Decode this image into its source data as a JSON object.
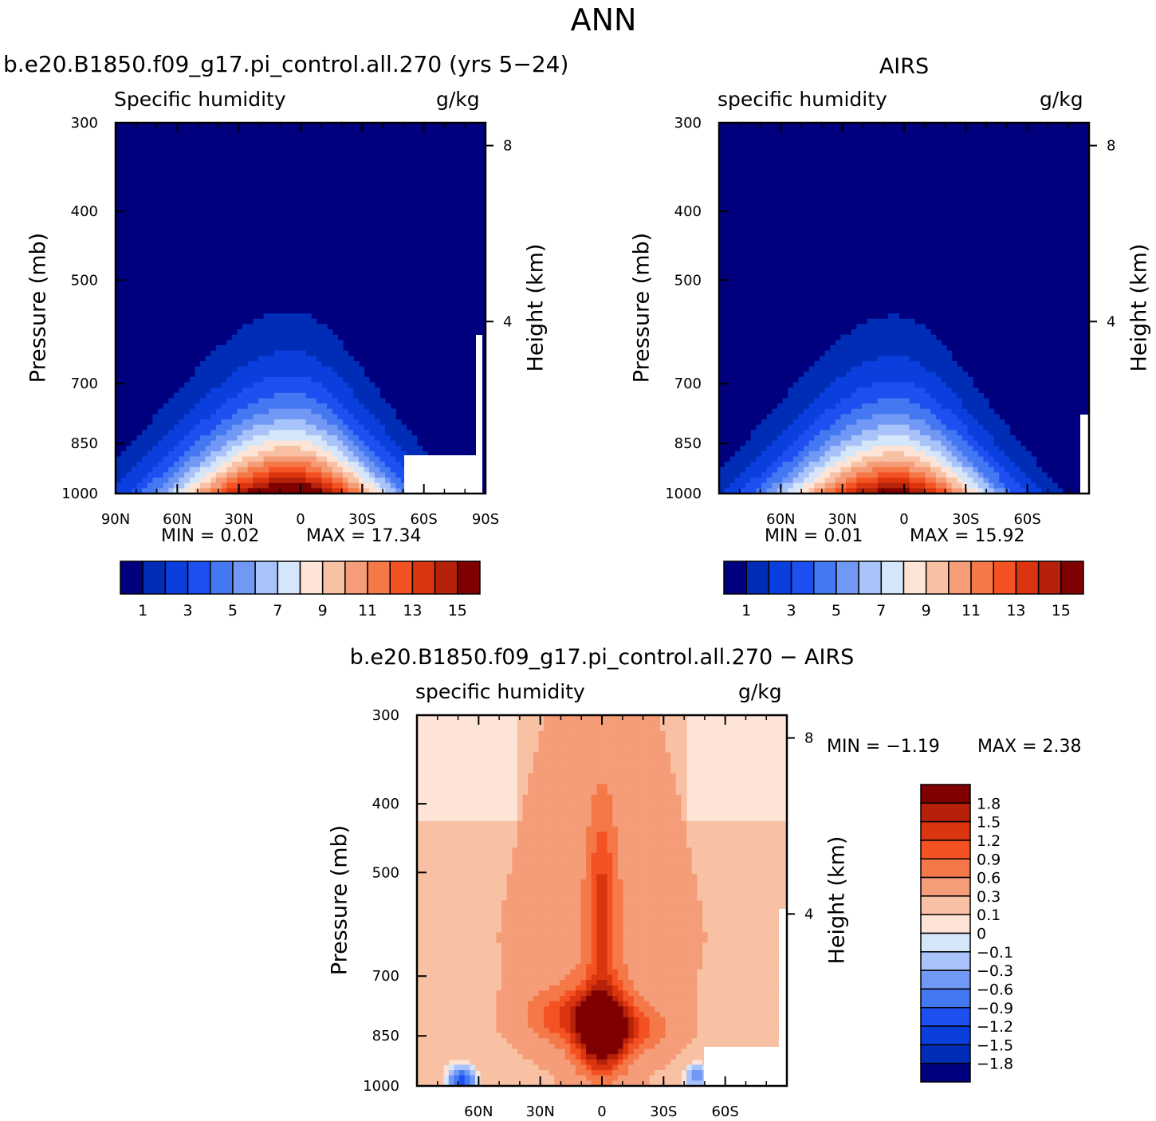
{
  "page_title": "ANN",
  "colors": {
    "positive_scale": [
      "#00007f",
      "#002db5",
      "#0a3fde",
      "#1d4ff1",
      "#4477f2",
      "#7298f5",
      "#a8c2fa",
      "#d5e6fb",
      "#fde4d6",
      "#f9c1a3",
      "#f59c78",
      "#f57848",
      "#f45223",
      "#db3510",
      "#b52209",
      "#7f0000"
    ],
    "diff_positive": [
      "#fde4d6",
      "#f9c1a3",
      "#f59c78",
      "#f57848",
      "#f45223",
      "#db3510",
      "#b52209",
      "#7f0000"
    ],
    "diff_negative": [
      "#d5e6fb",
      "#a8c2fa",
      "#7298f5",
      "#4477f2",
      "#1d4ff1",
      "#0a3fde",
      "#002db5",
      "#00007f"
    ]
  },
  "chart_data": [
    {
      "id": "model",
      "type": "contour",
      "title": "b.e20.B1850.f09_g17.pi_control.all.270 (yrs 5−24)",
      "left_label": "Specific humidity",
      "right_label": "g/kg",
      "xlabel": "",
      "ylabel": "Pressure (mb)",
      "y2label": "Height (km)",
      "x_tick_labels": [
        "90N",
        "60N",
        "30N",
        "0",
        "30S",
        "60S",
        "90S"
      ],
      "y_tick_labels": [
        "300",
        "400",
        "500",
        "700",
        "850",
        "1000"
      ],
      "y_tick_values": [
        300,
        400,
        500,
        700,
        850,
        1000
      ],
      "y2_tick_labels": [
        "8",
        "4"
      ],
      "y2_tick_values": [
        8,
        4
      ],
      "ylim": [
        1000,
        300
      ],
      "xlim": [
        90,
        -90
      ],
      "min_text": "MIN =    0.02",
      "max_text": "MAX =   17.34",
      "min": 0.02,
      "max": 17.34,
      "peak_lat": 5,
      "colorbar_levels": [
        1,
        2,
        3,
        4,
        5,
        6,
        7,
        8,
        9,
        10,
        11,
        12,
        13,
        14,
        15
      ],
      "colorbar_labels": [
        "1",
        "3",
        "5",
        "7",
        "9",
        "11",
        "13",
        "15"
      ]
    },
    {
      "id": "obs",
      "type": "contour",
      "title": "AIRS",
      "left_label": "specific humidity",
      "right_label": "g/kg",
      "xlabel": "",
      "ylabel": "Pressure (mb)",
      "y2label": "Height (km)",
      "x_tick_labels": [
        "60N",
        "30N",
        "0",
        "30S",
        "60S"
      ],
      "y_tick_labels": [
        "300",
        "400",
        "500",
        "700",
        "850",
        "1000"
      ],
      "y_tick_values": [
        300,
        400,
        500,
        700,
        850,
        1000
      ],
      "y2_tick_labels": [
        "8",
        "4"
      ],
      "y2_tick_values": [
        8,
        4
      ],
      "ylim": [
        1000,
        300
      ],
      "xlim": [
        90,
        -90
      ],
      "min_text": "MIN =    0.01",
      "max_text": "MAX =   15.92",
      "min": 0.01,
      "max": 15.92,
      "peak_lat": 5,
      "colorbar_levels": [
        1,
        2,
        3,
        4,
        5,
        6,
        7,
        8,
        9,
        10,
        11,
        12,
        13,
        14,
        15
      ],
      "colorbar_labels": [
        "1",
        "3",
        "5",
        "7",
        "9",
        "11",
        "13",
        "15"
      ]
    },
    {
      "id": "diff",
      "type": "contour",
      "title": "b.e20.B1850.f09_g17.pi_control.all.270 − AIRS",
      "left_label": "specific humidity",
      "right_label": "g/kg",
      "xlabel": "",
      "ylabel": "Pressure (mb)",
      "y2label": "Height (km)",
      "x_tick_labels": [
        "60N",
        "30N",
        "0",
        "30S",
        "60S"
      ],
      "y_tick_labels": [
        "300",
        "400",
        "500",
        "700",
        "850",
        "1000"
      ],
      "y_tick_values": [
        300,
        400,
        500,
        700,
        850,
        1000
      ],
      "y2_tick_labels": [
        "8",
        "4"
      ],
      "y2_tick_values": [
        8,
        4
      ],
      "ylim": [
        1000,
        300
      ],
      "xlim": [
        90,
        -90
      ],
      "min_text": "MIN =   −1.19",
      "max_text": "MAX =    2.38",
      "min": -1.19,
      "max": 2.38,
      "colorbar_levels": [
        -1.8,
        -1.5,
        -1.2,
        -0.9,
        -0.6,
        -0.3,
        -0.1,
        0,
        0.1,
        0.3,
        0.6,
        0.9,
        1.2,
        1.5,
        1.8
      ],
      "colorbar_labels": [
        "1.8",
        "1.5",
        "1.2",
        "0.9",
        "0.6",
        "0.3",
        "0.1",
        "0",
        "−0.1",
        "−0.3",
        "−0.6",
        "−0.9",
        "−1.2",
        "−1.5",
        "−1.8"
      ]
    }
  ]
}
